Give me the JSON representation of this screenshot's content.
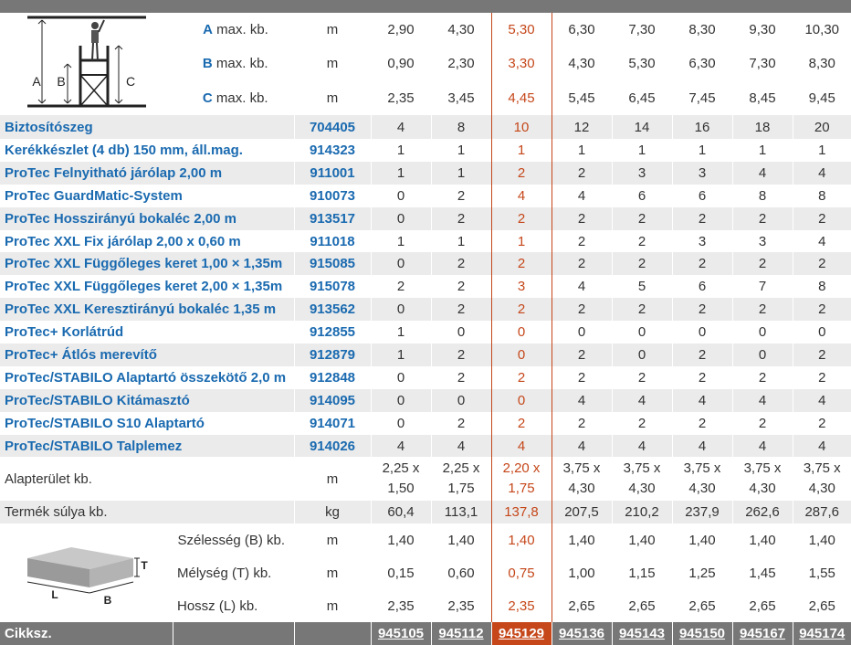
{
  "colors": {
    "accent_blue": "#1a6ab0",
    "highlight_orange": "#c5471a",
    "footer_gray": "#777777",
    "row_shade": "#ebebeb"
  },
  "dimension_rows": [
    {
      "key": "A",
      "label": " max. kb.",
      "unit": "m",
      "values": [
        "2,90",
        "4,30",
        "5,30",
        "6,30",
        "7,30",
        "8,30",
        "9,30",
        "10,30"
      ]
    },
    {
      "key": "B",
      "label": " max. kb.",
      "unit": "m",
      "values": [
        "0,90",
        "2,30",
        "3,30",
        "4,30",
        "5,30",
        "6,30",
        "7,30",
        "8,30"
      ]
    },
    {
      "key": "C",
      "label": " max. kb.",
      "unit": "m",
      "values": [
        "2,35",
        "3,45",
        "4,45",
        "5,45",
        "6,45",
        "7,45",
        "8,45",
        "9,45"
      ]
    }
  ],
  "scaffold_diagram_labels": {
    "a": "A",
    "b": "B",
    "c": "C"
  },
  "parts": [
    {
      "name": "Biztosítószeg",
      "code": "704405",
      "values": [
        "4",
        "8",
        "10",
        "12",
        "14",
        "16",
        "18",
        "20"
      ]
    },
    {
      "name": "Kerékkészlet (4 db) 150 mm, áll.mag.",
      "code": "914323",
      "values": [
        "1",
        "1",
        "1",
        "1",
        "1",
        "1",
        "1",
        "1"
      ]
    },
    {
      "name": "ProTec Felnyitható járólap 2,00 m",
      "code": "911001",
      "values": [
        "1",
        "1",
        "2",
        "2",
        "3",
        "3",
        "4",
        "4"
      ]
    },
    {
      "name": "ProTec GuardMatic-System",
      "code": "910073",
      "values": [
        "0",
        "2",
        "4",
        "4",
        "6",
        "6",
        "8",
        "8"
      ]
    },
    {
      "name": "ProTec Hosszirányú bokaléc 2,00 m",
      "code": "913517",
      "values": [
        "0",
        "2",
        "2",
        "2",
        "2",
        "2",
        "2",
        "2"
      ]
    },
    {
      "name": "ProTec XXL Fix járólap 2,00 x 0,60 m",
      "code": "911018",
      "values": [
        "1",
        "1",
        "1",
        "2",
        "2",
        "3",
        "3",
        "4"
      ]
    },
    {
      "name": "ProTec XXL Függőleges keret 1,00 × 1,35m",
      "code": "915085",
      "values": [
        "0",
        "2",
        "2",
        "2",
        "2",
        "2",
        "2",
        "2"
      ]
    },
    {
      "name": "ProTec XXL Függőleges keret 2,00 × 1,35m",
      "code": "915078",
      "values": [
        "2",
        "2",
        "3",
        "4",
        "5",
        "6",
        "7",
        "8"
      ]
    },
    {
      "name": "ProTec XXL Keresztirányú bokaléc 1,35 m",
      "code": "913562",
      "values": [
        "0",
        "2",
        "2",
        "2",
        "2",
        "2",
        "2",
        "2"
      ]
    },
    {
      "name": "ProTec+ Korlátrúd",
      "code": "912855",
      "values": [
        "1",
        "0",
        "0",
        "0",
        "0",
        "0",
        "0",
        "0"
      ]
    },
    {
      "name": "ProTec+ Átlós merevítő",
      "code": "912879",
      "values": [
        "1",
        "2",
        "0",
        "2",
        "0",
        "2",
        "0",
        "2"
      ]
    },
    {
      "name": "ProTec/STABILO Alaptartó összekötő 2,0 m",
      "code": "912848",
      "values": [
        "0",
        "2",
        "2",
        "2",
        "2",
        "2",
        "2",
        "2"
      ]
    },
    {
      "name": "ProTec/STABILO Kitámasztó",
      "code": "914095",
      "values": [
        "0",
        "0",
        "0",
        "4",
        "4",
        "4",
        "4",
        "4"
      ]
    },
    {
      "name": "ProTec/STABILO S10 Alaptartó",
      "code": "914071",
      "values": [
        "0",
        "2",
        "2",
        "2",
        "2",
        "2",
        "2",
        "2"
      ]
    },
    {
      "name": "ProTec/STABILO Talplemez",
      "code": "914026",
      "values": [
        "4",
        "4",
        "4",
        "4",
        "4",
        "4",
        "4",
        "4"
      ]
    }
  ],
  "area": {
    "label": "Alapterület kb.",
    "unit": "m",
    "values": [
      "2,25 x 1,50",
      "2,25 x 1,75",
      "2,20 x 1,75",
      "3,75 x 4,30",
      "3,75 x 4,30",
      "3,75 x 4,30",
      "3,75 x 4,30",
      "3,75 x 4,30"
    ]
  },
  "weight": {
    "label": "Termék súlya kb.",
    "unit": "kg",
    "values": [
      "60,4",
      "113,1",
      "137,8",
      "207,5",
      "210,2",
      "237,9",
      "262,6",
      "287,6"
    ]
  },
  "package_rows": [
    {
      "label": "Szélesség (B) kb.",
      "unit": "m",
      "values": [
        "1,40",
        "1,40",
        "1,40",
        "1,40",
        "1,40",
        "1,40",
        "1,40",
        "1,40"
      ]
    },
    {
      "label": "Mélység (T) kb.",
      "unit": "m",
      "values": [
        "0,15",
        "0,60",
        "0,75",
        "1,00",
        "1,15",
        "1,25",
        "1,45",
        "1,55"
      ]
    },
    {
      "label": "Hossz (L) kb.",
      "unit": "m",
      "values": [
        "2,35",
        "2,35",
        "2,35",
        "2,65",
        "2,65",
        "2,65",
        "2,65",
        "2,65"
      ]
    }
  ],
  "package_diagram_labels": {
    "t": "T",
    "l": "L",
    "b": "B"
  },
  "footer": {
    "label": "Cikksz.",
    "codes": [
      "945105",
      "945112",
      "945129",
      "945136",
      "945143",
      "945150",
      "945167",
      "945174"
    ]
  },
  "highlight_column": 2
}
